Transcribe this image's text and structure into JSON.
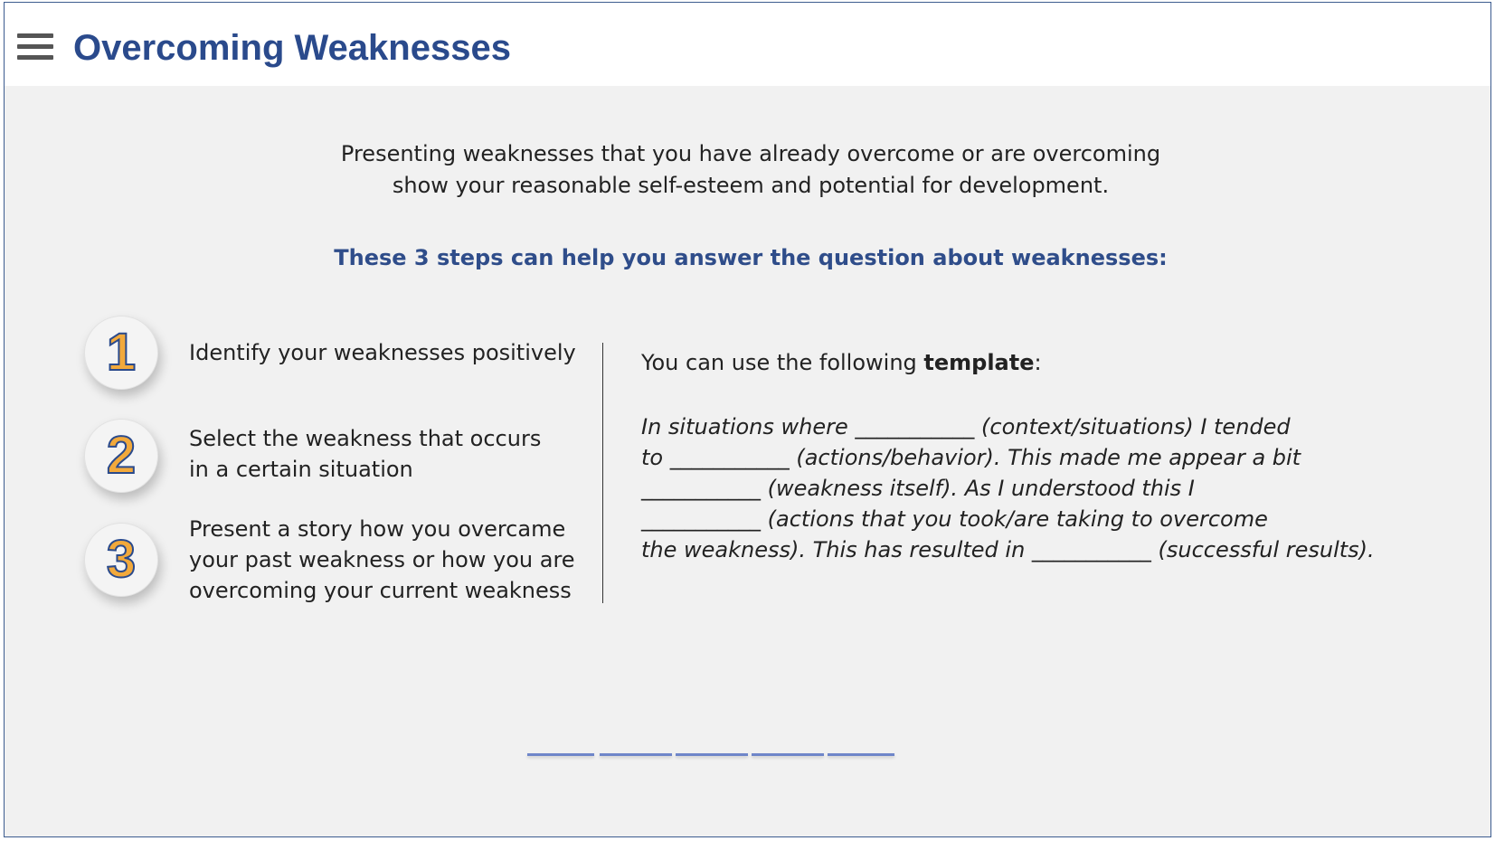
{
  "header": {
    "title": "Overcoming Weaknesses",
    "menu_icon": "hamburger-menu-icon"
  },
  "intro": {
    "line1": "Presenting weaknesses that you have already overcome or are overcoming",
    "line2": "show your reasonable self-esteem and potential for development."
  },
  "subheading": "These 3 steps can help you answer the question about weaknesses:",
  "steps": [
    {
      "number": "1",
      "lines": [
        "Identify your weaknesses positively"
      ]
    },
    {
      "number": "2",
      "lines": [
        "Select the weakness that occurs",
        "in a certain situation"
      ]
    },
    {
      "number": "3",
      "lines": [
        "Present a story how you overcame",
        "your past weakness or how you are",
        "overcoming your current weakness"
      ]
    }
  ],
  "template": {
    "intro_before": "You can use the following ",
    "intro_bold": "template",
    "intro_after": ":",
    "lines": [
      "In situations where ___________ (context/situations) I tended",
      "to ___________ (actions/behavior). This made me appear a bit",
      "___________ (weakness itself). As I understood this I",
      "___________ (actions that you took/are taking to overcome",
      "the weakness). This has resulted in ___________ (successful results)."
    ]
  },
  "colors": {
    "title": "#2a4a8c",
    "subheading": "#2f4d8a",
    "step_number_fill": "#f2a93b",
    "step_number_outline": "#2a4a8c",
    "progress": "#6f86c9",
    "background": "#f1f1f1",
    "frame_border": "#3c5c8f"
  },
  "progress": {
    "segments": 5
  }
}
